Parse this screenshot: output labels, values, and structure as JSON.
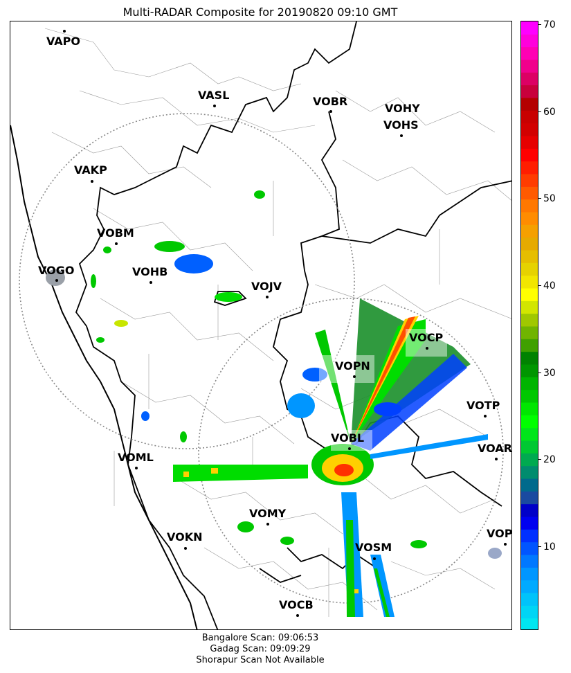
{
  "title": "Multi-RADAR Composite for 20190820 09:10 GMT",
  "footer": {
    "line1": "Bangalore Scan: 09:06:53",
    "line2": "Gadag Scan: 09:09:29",
    "line3": "Shorapur Scan Not Available"
  },
  "stations": [
    {
      "id": "VAPO",
      "label": "VAPO"
    },
    {
      "id": "VASL",
      "label": "VASL"
    },
    {
      "id": "VOBR",
      "label": "VOBR"
    },
    {
      "id": "VOHY",
      "label": "VOHY"
    },
    {
      "id": "VOHS",
      "label": "VOHS"
    },
    {
      "id": "VAKP",
      "label": "VAKP"
    },
    {
      "id": "VOBM",
      "label": "VOBM"
    },
    {
      "id": "VOGO",
      "label": "VOGO"
    },
    {
      "id": "VOHB",
      "label": "VOHB"
    },
    {
      "id": "VOJV",
      "label": "VOJV"
    },
    {
      "id": "VOCP",
      "label": "VOCP"
    },
    {
      "id": "VOPN",
      "label": "VOPN"
    },
    {
      "id": "VOTP",
      "label": "VOTP"
    },
    {
      "id": "VOBL",
      "label": "VOBL"
    },
    {
      "id": "VOAR",
      "label": "VOAR"
    },
    {
      "id": "VOML",
      "label": "VOML"
    },
    {
      "id": "VOMY",
      "label": "VOMY"
    },
    {
      "id": "VOKN",
      "label": "VOKN"
    },
    {
      "id": "VOSM",
      "label": "VOSM"
    },
    {
      "id": "VOPC",
      "label": "VOPC"
    },
    {
      "id": "VOCB",
      "label": "VOCB"
    }
  ],
  "colorbar": {
    "ticks": [
      "70",
      "60",
      "50",
      "40",
      "30",
      "20",
      "10"
    ],
    "range": [
      0,
      70
    ],
    "tick_values": [
      70,
      60,
      50,
      40,
      30,
      20,
      10
    ],
    "colors": [
      "#00e6f0",
      "#00d5f5",
      "#00c3fa",
      "#00aaff",
      "#0096ff",
      "#0078ff",
      "#0055ff",
      "#0030ff",
      "#0000f0",
      "#0000c8",
      "#1a4aa0",
      "#006a8c",
      "#008c6e",
      "#00aa50",
      "#00c832",
      "#00e61a",
      "#00ff00",
      "#00e600",
      "#00c800",
      "#00b400",
      "#009600",
      "#008200",
      "#40a000",
      "#70b400",
      "#a0c800",
      "#d2e600",
      "#ffff00",
      "#f2e600",
      "#e6d200",
      "#e6be00",
      "#e6aa00",
      "#f5a000",
      "#ff8c00",
      "#ff7800",
      "#ff5a00",
      "#ff3c00",
      "#ff1e00",
      "#ff0000",
      "#e60000",
      "#d20000",
      "#c80000",
      "#b40000",
      "#c8003c",
      "#dc0064",
      "#f0008c",
      "#ff00b4",
      "#ff00dc",
      "#ff00ff"
    ]
  }
}
